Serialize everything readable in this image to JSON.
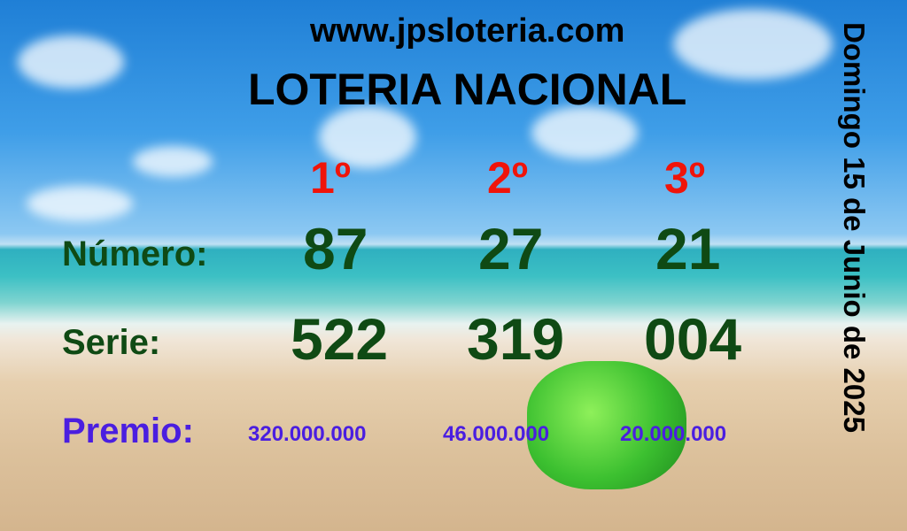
{
  "website": "www.jpsloteria.com",
  "title": "LOTERIA NACIONAL",
  "date": "Domingo 15 de Junio de 2025",
  "labels": {
    "numero": "Número:",
    "serie": "Serie:",
    "premio": "Premio:"
  },
  "prizes": [
    {
      "position": "1º",
      "numero": "87",
      "serie": "522",
      "premio": "320.000.000"
    },
    {
      "position": "2º",
      "numero": "27",
      "serie": "319",
      "premio": "46.000.000"
    },
    {
      "position": "3º",
      "numero": "21",
      "serie": "004",
      "premio": "20.000.000"
    }
  ],
  "colors": {
    "position": "#f0140a",
    "numbers": "#0f4a14",
    "premio": "#4a1ee0"
  }
}
